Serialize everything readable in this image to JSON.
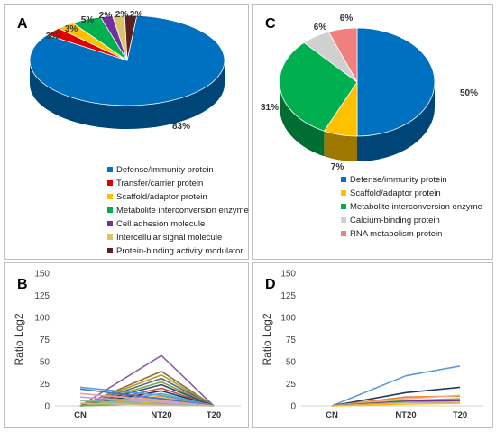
{
  "chart_data": [
    {
      "id": "A",
      "type": "pie",
      "panel_label": "A",
      "labels": [
        "Defense/immunity protein",
        "Transfer/carrier protein",
        "Scaffold/adaptor protein",
        "Metabolite interconversion enzyme",
        "Cell adhesion molecule",
        "Intercellular signal molecule",
        "Protein-binding activity modulator"
      ],
      "values": [
        83,
        3,
        3,
        5,
        2,
        2,
        2
      ],
      "value_labels": [
        "83%",
        "3%",
        "3%",
        "5%",
        "2%",
        "2%",
        "2%"
      ],
      "colors": [
        "#0070C0",
        "#E00000",
        "#FFC000",
        "#00B050",
        "#7030A0",
        "#D9C46A",
        "#5A1F1F"
      ],
      "legend": "bottom",
      "style": "3d"
    },
    {
      "id": "C",
      "type": "pie",
      "panel_label": "C",
      "labels": [
        "Defense/immunity protein",
        "Scaffold/adaptor protein",
        "Metabolite interconversion enzyme",
        "Calcium-binding protein",
        "RNA metabolism protein"
      ],
      "values": [
        50,
        7,
        31,
        6,
        6
      ],
      "value_labels": [
        "50%",
        "7%",
        "31%",
        "6%",
        "6%"
      ],
      "colors": [
        "#0070C0",
        "#FFC000",
        "#00B050",
        "#D0D0D0",
        "#F08080"
      ],
      "legend": "bottom",
      "style": "3d"
    },
    {
      "id": "B",
      "type": "line",
      "panel_label": "B",
      "ylabel": "Ratio Log2",
      "categories": [
        "CN",
        "NT20",
        "T20"
      ],
      "ylim": [
        0,
        150
      ],
      "yticks": [
        0,
        25,
        50,
        75,
        100,
        125,
        150
      ],
      "legend": "none",
      "series": [
        {
          "values": [
            0,
            57,
            0
          ],
          "color": "#8E5EA2"
        },
        {
          "values": [
            0,
            39,
            0
          ],
          "color": "#8C6D3F"
        },
        {
          "values": [
            0,
            35,
            0
          ],
          "color": "#B89A2E"
        },
        {
          "values": [
            0,
            31,
            0
          ],
          "color": "#5B6B7A"
        },
        {
          "values": [
            0,
            27,
            0
          ],
          "color": "#7FA34A"
        },
        {
          "values": [
            0,
            24,
            0
          ],
          "color": "#2F4F6F"
        },
        {
          "values": [
            0,
            20,
            0
          ],
          "color": "#C0504D"
        },
        {
          "values": [
            0,
            17,
            0
          ],
          "color": "#203864"
        },
        {
          "values": [
            0,
            14,
            0
          ],
          "color": "#4BACC6"
        },
        {
          "values": [
            0,
            11,
            0
          ],
          "color": "#F79646"
        },
        {
          "values": [
            0,
            9,
            0
          ],
          "color": "#9BBB59"
        },
        {
          "values": [
            0,
            7,
            0
          ],
          "color": "#A5A5A5"
        },
        {
          "values": [
            0,
            5,
            0
          ],
          "color": "#FFC000"
        },
        {
          "values": [
            0,
            3,
            0
          ],
          "color": "#70AD47"
        },
        {
          "values": [
            21,
            12,
            0
          ],
          "color": "#5B9BD5"
        },
        {
          "values": [
            19,
            8,
            0
          ],
          "color": "#4472C4"
        },
        {
          "values": [
            14,
            6,
            0
          ],
          "color": "#E6A0A0"
        },
        {
          "values": [
            10,
            4,
            0
          ],
          "color": "#C9A0DC"
        },
        {
          "values": [
            6,
            2,
            0
          ],
          "color": "#8FBC8F"
        },
        {
          "values": [
            3,
            1,
            0
          ],
          "color": "#D2B48C"
        }
      ]
    },
    {
      "id": "D",
      "type": "line",
      "panel_label": "D",
      "ylabel": "Ratio Log2",
      "categories": [
        "CN",
        "NT20",
        "T20"
      ],
      "ylim": [
        0,
        150
      ],
      "yticks": [
        0,
        25,
        50,
        75,
        100,
        125,
        150
      ],
      "legend": "none",
      "series": [
        {
          "values": [
            0,
            34,
            45
          ],
          "color": "#5B9BD5"
        },
        {
          "values": [
            0,
            15,
            21
          ],
          "color": "#203864"
        },
        {
          "values": [
            0,
            10,
            11
          ],
          "color": "#ED7D31"
        },
        {
          "values": [
            0,
            8,
            12
          ],
          "color": "#F4B183"
        },
        {
          "values": [
            0,
            6,
            8
          ],
          "color": "#70AD47"
        },
        {
          "values": [
            0,
            5,
            6
          ],
          "color": "#7030A0"
        },
        {
          "values": [
            0,
            4,
            4
          ],
          "color": "#A5A5A5"
        },
        {
          "values": [
            0,
            2,
            3
          ],
          "color": "#FFC000"
        }
      ]
    }
  ]
}
